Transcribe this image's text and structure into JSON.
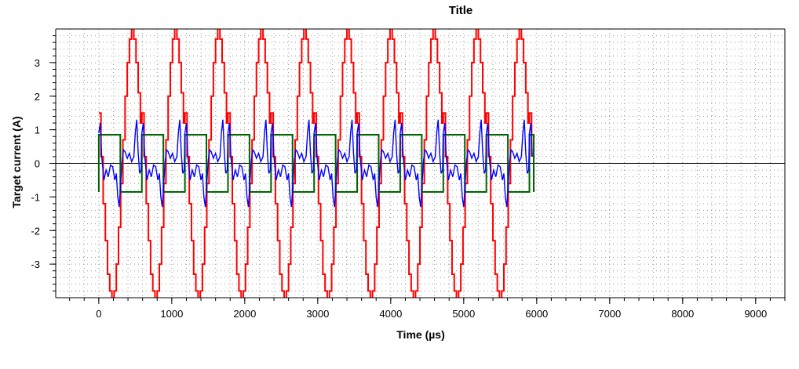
{
  "chart_data": {
    "type": "line",
    "title": "Title",
    "xlabel": "Time (µs)",
    "ylabel": "Target current (A)",
    "xlim": [
      -590,
      9400
    ],
    "ylim": [
      -4.0,
      4.0
    ],
    "x_ticks": [
      0,
      1000,
      2000,
      3000,
      4000,
      5000,
      6000,
      7000,
      8000,
      9000
    ],
    "x_tick_labels": [
      "0",
      "1000",
      "2000",
      "3000",
      "4000",
      "5000",
      "6000",
      "7000",
      "8000",
      "9000"
    ],
    "y_ticks": [
      -3,
      -2,
      -1,
      0,
      1,
      2,
      3
    ],
    "y_tick_labels": [
      "-3",
      "-2",
      "-1",
      "0",
      "1",
      "2",
      "3"
    ],
    "grid": "dotted",
    "legend": "none",
    "zero_line": true,
    "period_us": 590,
    "cycles": 10.1,
    "series": [
      {
        "color": "#ff0000",
        "waveform": "stepped sine",
        "amplitude": 4.1,
        "x": [
          0,
          30,
          30,
          60,
          60,
          90,
          90,
          120,
          120,
          150,
          150,
          180,
          180,
          210,
          210,
          240,
          240,
          270,
          270,
          300,
          300,
          330,
          330,
          360,
          360,
          390,
          390,
          420,
          420,
          450,
          450,
          480,
          480,
          510,
          510,
          540,
          540,
          570,
          570,
          590
        ],
        "values": [
          1.5,
          1.5,
          0.2,
          0.2,
          -1.2,
          -1.2,
          -2.3,
          -2.3,
          -3.3,
          -3.3,
          -3.8,
          -3.8,
          -4.1,
          -4.1,
          -3.8,
          -3.8,
          -3.0,
          -3.0,
          -1.9,
          -1.9,
          -0.6,
          -0.6,
          0.7,
          0.7,
          2.0,
          2.0,
          3.0,
          3.0,
          3.7,
          3.7,
          4.1,
          4.1,
          3.7,
          3.7,
          3.0,
          3.0,
          2.1,
          2.1,
          1.2,
          1.2
        ]
      },
      {
        "color": "#006400",
        "waveform": "square",
        "high": 0.85,
        "low": -0.85,
        "duty": 0.5,
        "start_level": 0.85
      },
      {
        "color": "#0000ff",
        "waveform": "ringing",
        "x": [
          0,
          20,
          40,
          70,
          100,
          130,
          160,
          190,
          220,
          240,
          260,
          280,
          300,
          320,
          340,
          360,
          390,
          420,
          450,
          480,
          500,
          520,
          540,
          560,
          580
        ],
        "values": [
          0.9,
          1.2,
          0.2,
          -0.5,
          -0.2,
          -0.4,
          -0.05,
          -0.1,
          -0.5,
          -0.3,
          -1.0,
          -1.3,
          -0.6,
          0.1,
          0.4,
          0.35,
          0.15,
          0.3,
          0.05,
          0.2,
          0.9,
          1.3,
          0.3,
          -0.3,
          -0.2
        ]
      }
    ]
  }
}
